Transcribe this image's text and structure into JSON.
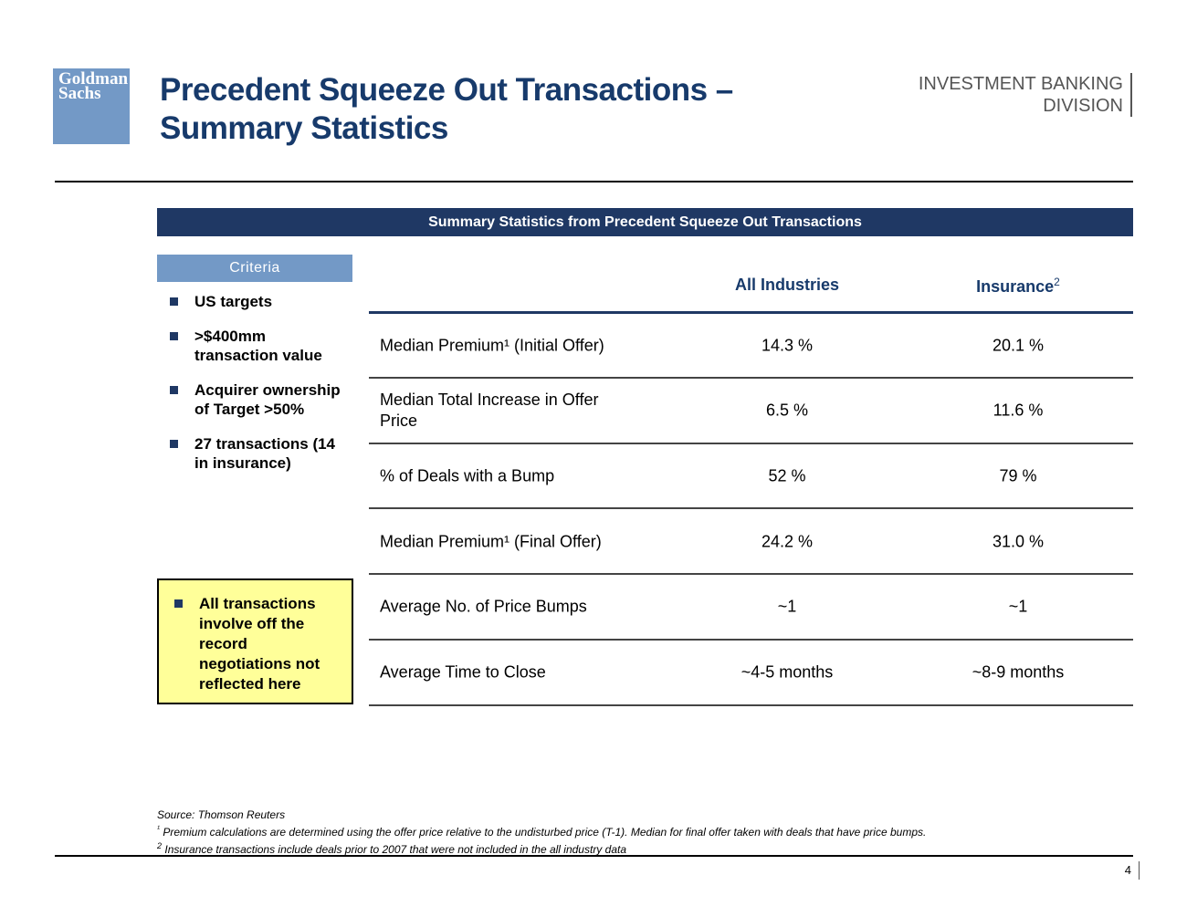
{
  "logo": {
    "lines": [
      "Goldman",
      "Sachs"
    ]
  },
  "header": {
    "title_lines": [
      "Precedent Squeeze Out Transactions –",
      "Summary Statistics"
    ],
    "division_lines": [
      "INVESTMENT BANKING",
      "DIVISION"
    ]
  },
  "banner": "Summary Statistics from Precedent Squeeze Out Transactions",
  "criteria": {
    "heading": "Criteria",
    "items": [
      "US targets",
      ">$400mm transaction value",
      "Acquirer ownership of Target >50%",
      "27 transactions (14 in insurance)"
    ],
    "note": "All transactions involve off the record negotiations not reflected here"
  },
  "table": {
    "columns": [
      {
        "label": "All Industries"
      },
      {
        "label": "Insurance",
        "note": "2"
      }
    ],
    "rows": [
      [
        "Median Premium¹ (Initial Offer)",
        "14.3 %",
        "20.1 %"
      ],
      [
        "Median Total Increase in Offer Price",
        "6.5 %",
        "11.6 %"
      ],
      [
        "% of Deals with a Bump",
        "52 %",
        "79 %"
      ],
      [
        "Median Premium¹ (Final Offer)",
        "24.2 %",
        "31.0 %"
      ],
      [
        "Average No. of Price Bumps",
        "~1",
        "~1"
      ],
      [
        "Average Time to Close",
        "~4-5 months",
        "~8-9 months"
      ]
    ]
  },
  "footnotes": {
    "source": "Source: Thomson Reuters",
    "notes": [
      {
        "mark": "¹",
        "text": "Premium calculations are determined using the offer price relative to the undisturbed price (T-1). Median for final offer taken with deals that have price bumps."
      },
      {
        "mark": "2",
        "text": "Insurance transactions include deals prior to 2007 that were not included in the all industry data"
      }
    ]
  },
  "page_number": "4"
}
